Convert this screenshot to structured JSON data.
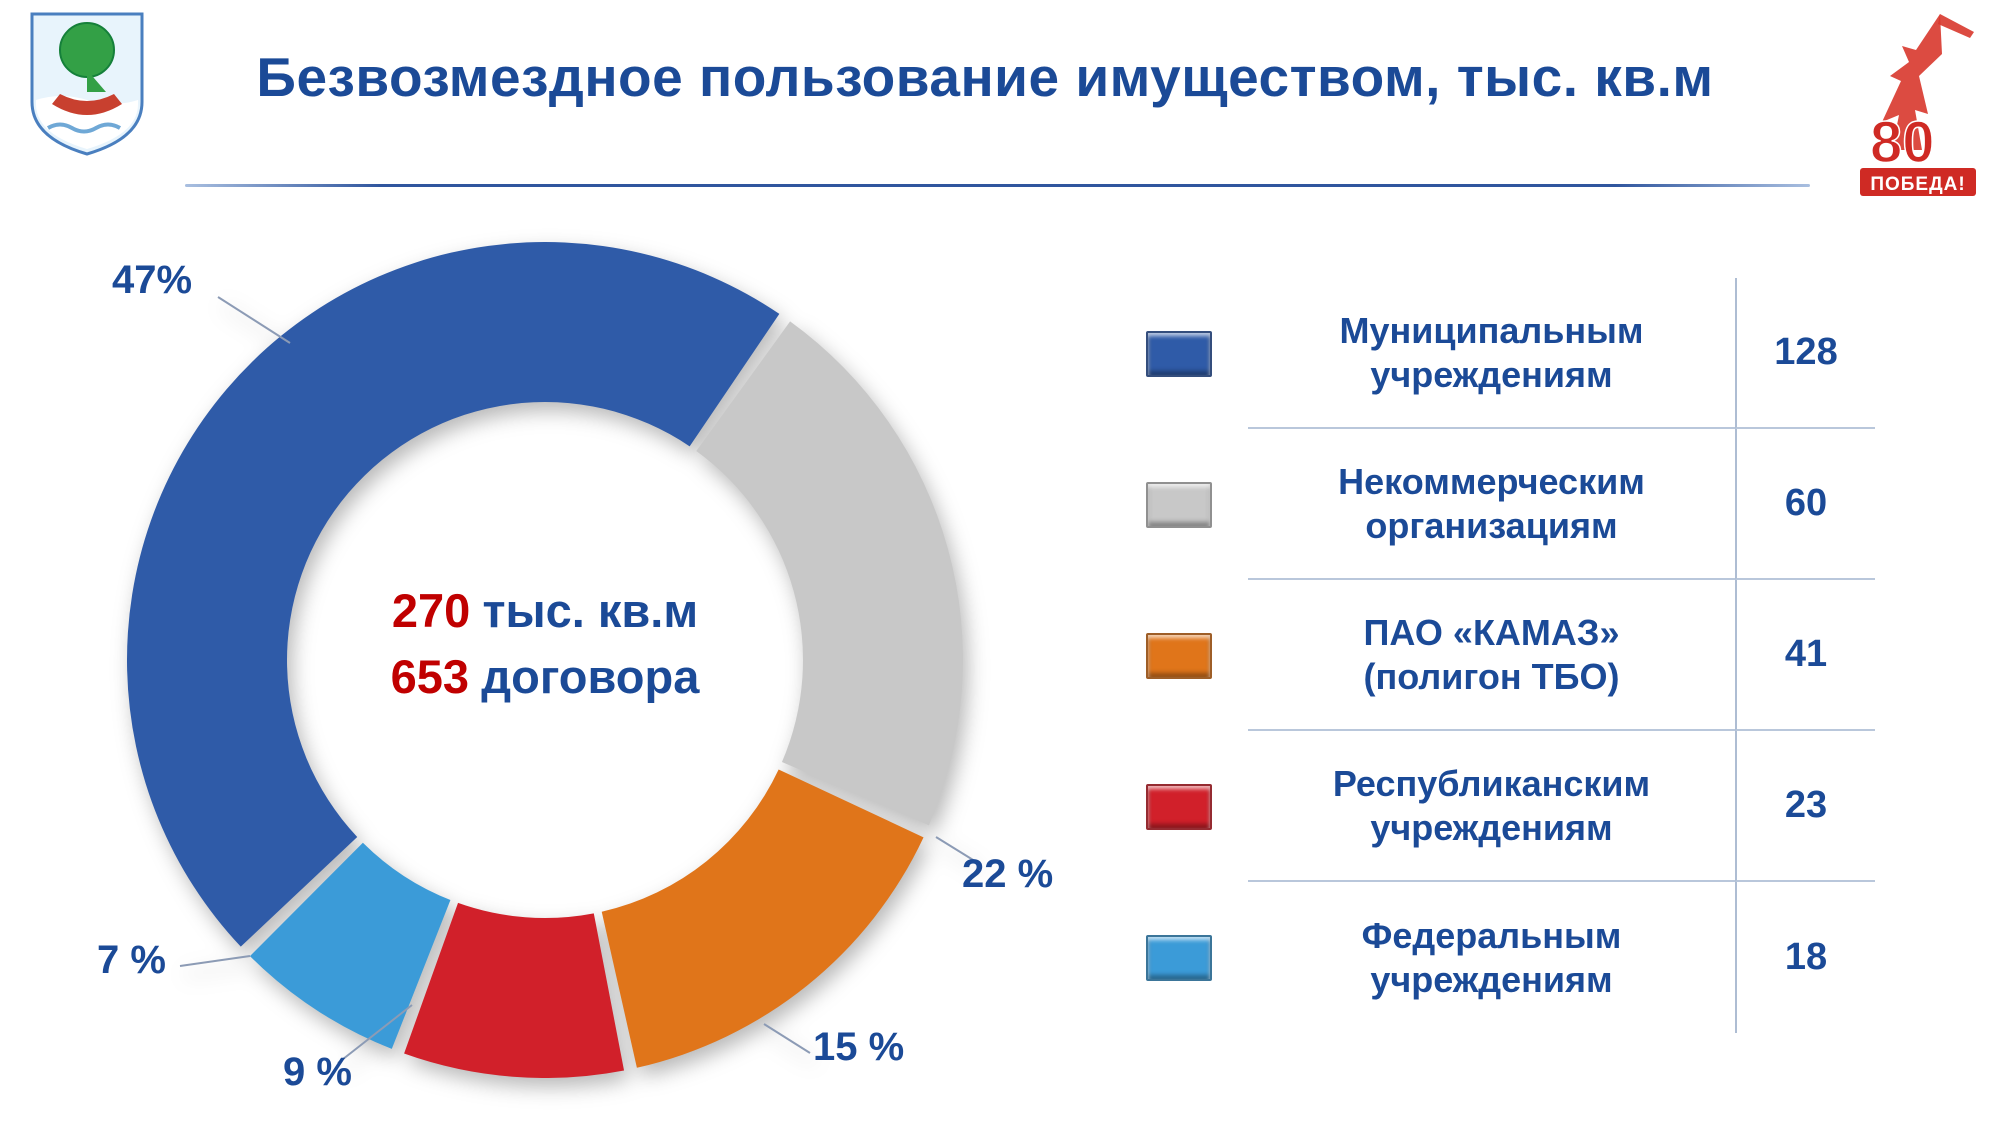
{
  "slide": {
    "title": "Безвозмездное пользование имуществом, тыс. кв.м",
    "background_color": "#FFFFFF"
  },
  "colors": {
    "title_text": "#1B4A97",
    "value_red": "#C00000",
    "separator": "#B9C7DB"
  },
  "logos": {
    "coat_of_arms": "naberezhnye-chelny-city-emblem",
    "victory": {
      "number": "80",
      "label": "ПОБЕДА!"
    }
  },
  "chart_data": {
    "type": "donut",
    "title": "Безвозмездное пользование имуществом, тыс. кв.м",
    "units": "тыс. кв.м",
    "start_angle_deg": -134.2,
    "center": {
      "area_value": "270",
      "area_units": "тыс. кв.м",
      "contracts_value": "653",
      "contracts_units": "договора"
    },
    "total_value": 270,
    "total_contracts": 653,
    "legend_position": "right",
    "series": [
      {
        "label": "Муниципальным учреждениям",
        "value": 128,
        "percent": 47,
        "percent_label": "47%",
        "color": "#2F5BA8"
      },
      {
        "label": "Некоммерческим организациям",
        "value": 60,
        "percent": 22,
        "percent_label": "22 %",
        "color": "#C8C8C8"
      },
      {
        "label": "ПАО «КАМАЗ» (полигон ТБО)",
        "value": 41,
        "percent": 15,
        "percent_label": "15 %",
        "color": "#E0751A"
      },
      {
        "label": "Республиканским учреждениям",
        "value": 23,
        "percent": 9,
        "percent_label": "9 %",
        "color": "#D1202A"
      },
      {
        "label": "Федеральным учреждениям",
        "value": 18,
        "percent": 7,
        "percent_label": "7 %",
        "color": "#3B9BD8"
      }
    ]
  },
  "legend": {
    "rows": [
      {
        "label_line1": "Муниципальным",
        "label_line2": "учреждениям",
        "value": "128",
        "color": "#2F5BA8"
      },
      {
        "label_line1": "Некоммерческим",
        "label_line2": "организациям",
        "value": "60",
        "color": "#C8C8C8"
      },
      {
        "label_line1": "ПАО «КАМАЗ»",
        "label_line2": "(полигон ТБО)",
        "value": "41",
        "color": "#E0751A"
      },
      {
        "label_line1": "Республиканским",
        "label_line2": "учреждениям",
        "value": "23",
        "color": "#D1202A"
      },
      {
        "label_line1": "Федеральным",
        "label_line2": "учреждениям",
        "value": "18",
        "color": "#3B9BD8"
      }
    ]
  }
}
